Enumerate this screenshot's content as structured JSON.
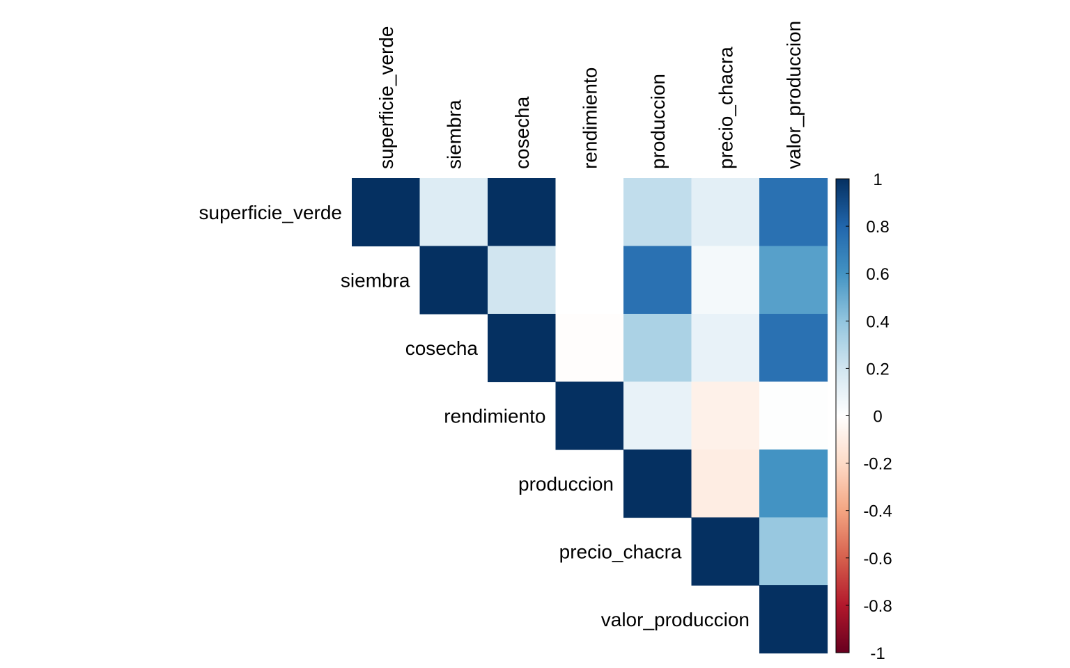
{
  "chart_data": {
    "type": "heatmap",
    "variables": [
      "superficie_verde",
      "siembra",
      "cosecha",
      "rendimiento",
      "produccion",
      "precio_chacra",
      "valor_produccion"
    ],
    "matrix": [
      [
        1.0,
        0.15,
        1.0,
        0.0,
        0.25,
        0.12,
        0.75
      ],
      [
        null,
        1.0,
        0.2,
        0.0,
        0.75,
        0.05,
        0.55
      ],
      [
        null,
        null,
        1.0,
        -0.01,
        0.32,
        0.1,
        0.75
      ],
      [
        null,
        null,
        null,
        1.0,
        0.1,
        -0.08,
        0.01
      ],
      [
        null,
        null,
        null,
        null,
        1.0,
        -0.1,
        0.6
      ],
      [
        null,
        null,
        null,
        null,
        null,
        1.0,
        0.38
      ],
      [
        null,
        null,
        null,
        null,
        null,
        null,
        1.0
      ]
    ],
    "colorbar": {
      "ticks": [
        "1",
        "0.8",
        "0.6",
        "0.4",
        "0.2",
        "0",
        "-0.2",
        "-0.4",
        "-0.6",
        "-0.8",
        "-1"
      ],
      "range": [
        -1,
        1
      ],
      "palette": [
        "#67001F",
        "#B2182B",
        "#D6604D",
        "#F4A582",
        "#FDDBC7",
        "#FFFFFF",
        "#D1E5F0",
        "#92C5DE",
        "#4393C3",
        "#2166AC",
        "#053061"
      ]
    },
    "layout": "upper-triangle",
    "labels_position": "top-and-diagonal"
  }
}
